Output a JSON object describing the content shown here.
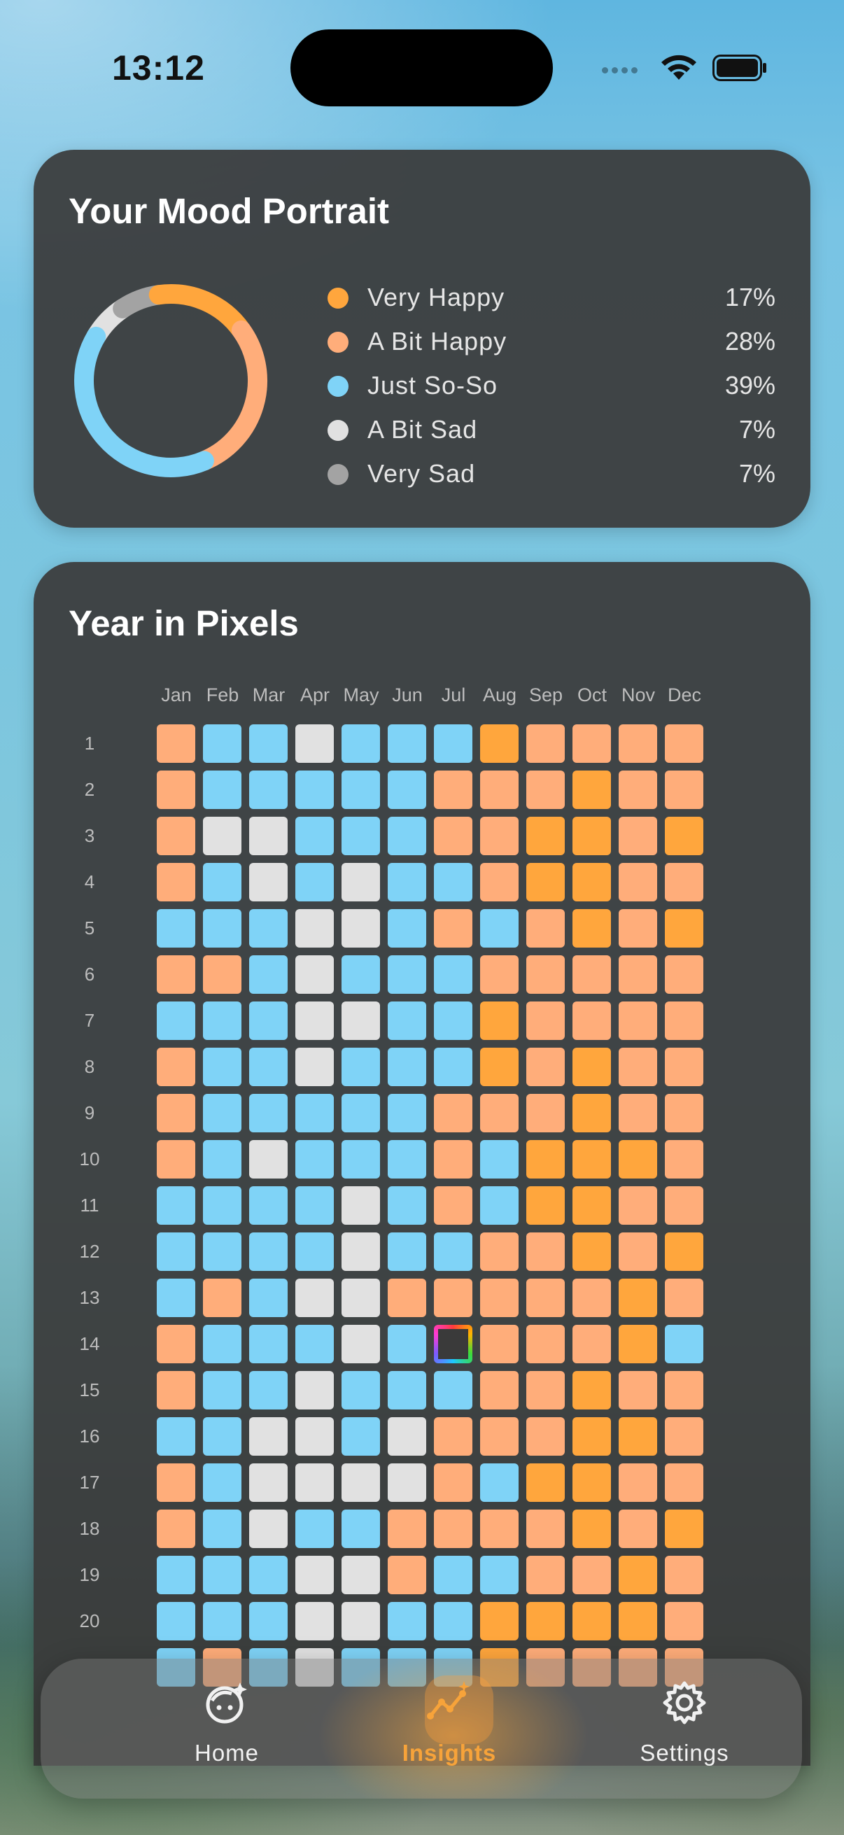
{
  "status_bar": {
    "time": "13:12"
  },
  "mood_portrait": {
    "title": "Your Mood Portrait",
    "items": [
      {
        "label": "Very Happy",
        "percent": "17%",
        "value": 17,
        "color": "#ffa63d"
      },
      {
        "label": "A Bit Happy",
        "percent": "28%",
        "value": 28,
        "color": "#ffad7a"
      },
      {
        "label": "Just So-So",
        "percent": "39%",
        "value": 39,
        "color": "#7fd3f7"
      },
      {
        "label": "A Bit Sad",
        "percent": "7%",
        "value": 7,
        "color": "#e1e1e1"
      },
      {
        "label": "Very Sad",
        "percent": "7%",
        "value": 7,
        "color": "#a3a3a3"
      }
    ]
  },
  "year_in_pixels": {
    "title": "Year in Pixels",
    "months": [
      "Jan",
      "Feb",
      "Mar",
      "Apr",
      "May",
      "Jun",
      "Jul",
      "Aug",
      "Sep",
      "Oct",
      "Nov",
      "Dec"
    ],
    "days": [
      "1",
      "2",
      "3",
      "4",
      "5",
      "6",
      "7",
      "8",
      "9",
      "10",
      "11",
      "12",
      "13",
      "14",
      "15",
      "16",
      "17",
      "18",
      "19",
      "20"
    ],
    "legend_key": {
      "V": "Very Happy",
      "H": "A Bit Happy",
      "S": "Just So-So",
      "A": "A Bit Sad",
      "today": "T"
    },
    "colors": {
      "V": "#ffa63d",
      "H": "#ffad7a",
      "S": "#7fd3f7",
      "A": "#e1e1e1"
    },
    "rows": [
      "HSSASSSVHHHH",
      "HSSSSSHHHVHH",
      "HAASSSHHVVHV",
      "HSASASSHVVHH",
      "SSSAASHSHVHV",
      "HHSASSSHHHHH",
      "SSSAASSVHHHH",
      "HSSASSSVHVHH",
      "HSSSSSHHHVHH",
      "HSASSSHSVVVH",
      "SSSSASHSVVHH",
      "SSSSASSHHVHV",
      "SHSAAHHHHHVH",
      "HSSSASTHHHVS",
      "HSSASSSHHVHH",
      "SSAASAHHHVVH",
      "HSAAAAHSVVHH",
      "HSASSHHHHVHV",
      "SSSAAHSSHHVH",
      "SSSAASSVVVVH"
    ]
  },
  "tab_bar": {
    "tabs": [
      {
        "label": "Home",
        "active": false
      },
      {
        "label": "Insights",
        "active": true
      },
      {
        "label": "Settings",
        "active": false
      }
    ]
  }
}
